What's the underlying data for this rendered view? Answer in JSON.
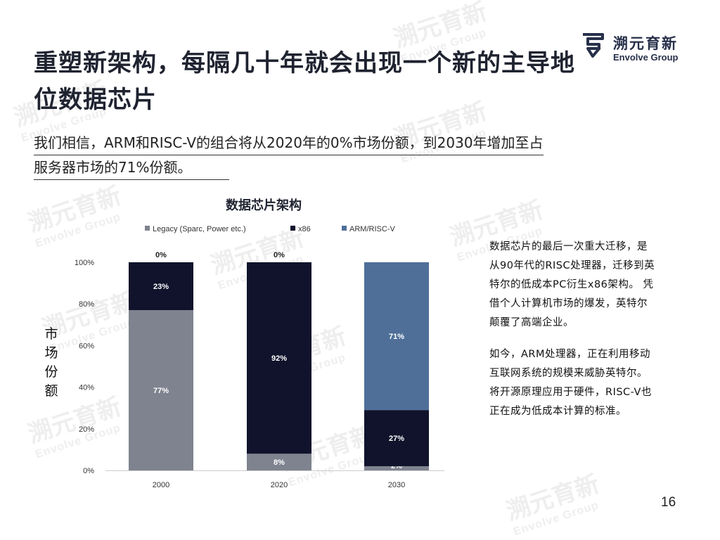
{
  "watermark": {
    "cn": "溯元育新",
    "en": "Envolve Group"
  },
  "header": {
    "title": "重塑新架构，每隔几十年就会出现一个新的主导地位数据芯片",
    "logo_cn": "溯元育新",
    "logo_en": "Envolve Group"
  },
  "subtitle": {
    "line1": "我们相信，ARM和RISC-V的组合将从2020年的0%市场份额，到2030年增加至占",
    "line2": "服务器市场的71%份额。"
  },
  "y_axis_label_chars": [
    "市",
    "场",
    "份",
    "额"
  ],
  "sidebar": {
    "para1": "数据芯片的最后一次重大迁移，是从90年代的RISC处理器，迁移到英特尔的低成本PC衍生x86架构。 凭借个人计算机市场的爆发，英特尔颠覆了高端企业。",
    "para2": "如今，ARM处理器，正在利用移动互联网系统的规模来威胁英特尔。将开源原理应用于硬件，RISC-V也正在成为低成本计算的标准。"
  },
  "footer": {
    "page_number": "16"
  },
  "colors": {
    "legacy": "#7f838f",
    "x86": "#10132b",
    "arm": "#4f6f99",
    "title": "#1f2330"
  },
  "chart_data": {
    "type": "bar",
    "stacked": true,
    "title": "数据芯片架构",
    "xlabel": "",
    "ylabel": "市场份额",
    "categories": [
      "2000",
      "2020",
      "2030"
    ],
    "ylim": [
      0,
      100
    ],
    "yticks": [
      "0%",
      "20%",
      "40%",
      "60%",
      "80%",
      "100%"
    ],
    "legend_position": "top",
    "series": [
      {
        "name": "Legacy (Sparc, Power etc.)",
        "color": "#7f838f",
        "values": [
          77,
          8,
          2
        ],
        "labels": [
          "77%",
          "8%",
          "2%"
        ]
      },
      {
        "name": "x86",
        "color": "#10132b",
        "values": [
          23,
          92,
          27
        ],
        "labels": [
          "23%",
          "92%",
          "27%"
        ]
      },
      {
        "name": "ARM/RISC-V",
        "color": "#4f6f99",
        "values": [
          0,
          0,
          71
        ],
        "labels": [
          "0%",
          "0%",
          "71%"
        ]
      }
    ]
  }
}
